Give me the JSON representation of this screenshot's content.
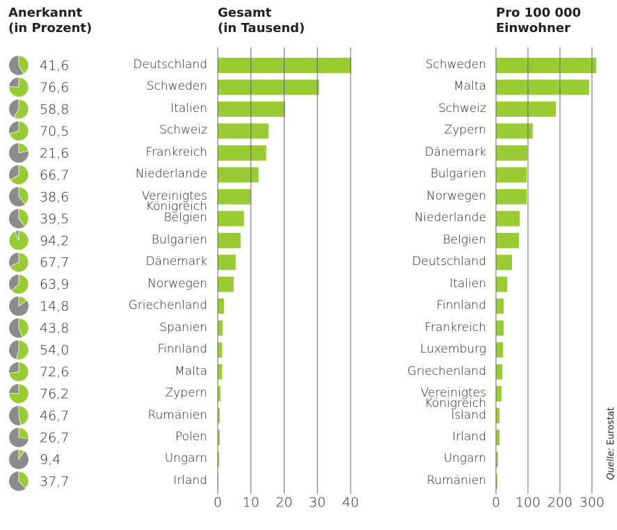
{
  "chart_data": [
    {
      "type": "pie",
      "title_lines": [
        "Anerkannt",
        "(in Prozent)"
      ],
      "values": [
        41.6,
        76.6,
        58.8,
        70.5,
        21.6,
        66.7,
        38.6,
        39.5,
        94.2,
        67.7,
        63.9,
        14.8,
        43.8,
        54.0,
        72.6,
        76.2,
        46.7,
        26.7,
        9.4,
        37.7
      ],
      "value_labels": [
        "41,6",
        "76,6",
        "58,8",
        "70,5",
        "21,6",
        "66,7",
        "38,6",
        "39,5",
        "94,2",
        "67,7",
        "63,9",
        "14,8",
        "43,8",
        "54,0",
        "72,6",
        "76,2",
        "46,7",
        "26,7",
        "9,4",
        "37,7"
      ],
      "color": "#99cc33",
      "rest_color": "#8c8c8c"
    },
    {
      "type": "hbar",
      "title_lines": [
        "Gesamt",
        "(in Tausend)"
      ],
      "categories": [
        "Deutschland",
        "Schweden",
        "Italien",
        "Schweiz",
        "Frankreich",
        "Niederlande",
        "Vereinigtes Königreich",
        "Belgien",
        "Bulgarien",
        "Dänemark",
        "Norwegen",
        "Griechenland",
        "Spanien",
        "Finnland",
        "Malta",
        "Zypern",
        "Rumänien",
        "Polen",
        "Ungarn",
        "Irland"
      ],
      "values": [
        40.2,
        30.5,
        20.3,
        15.3,
        14.6,
        12.3,
        10.0,
        7.9,
        6.9,
        5.4,
        4.8,
        1.9,
        1.5,
        1.3,
        1.3,
        0.8,
        0.6,
        0.6,
        0.4,
        0.2
      ],
      "color": "#99cc33",
      "xlim": [
        0,
        40
      ],
      "xticks": [
        0,
        10,
        20,
        30,
        40
      ],
      "grid": true
    },
    {
      "type": "hbar",
      "title_lines": [
        "Pro 100 000",
        "Einwohner"
      ],
      "categories": [
        "Schweden",
        "Malta",
        "Schweiz",
        "Zypern",
        "Dänemark",
        "Bulgarien",
        "Norwegen",
        "Niederlande",
        "Belgien",
        "Deutschland",
        "Italien",
        "Finnland",
        "Frankreich",
        "Luxemburg",
        "Griechenland",
        "Vereinigtes Königreich",
        "Island",
        "Irland",
        "Ungarn",
        "Rumänien"
      ],
      "values": [
        313,
        291,
        187,
        115,
        98,
        96,
        96,
        74,
        72,
        50,
        35,
        24,
        24,
        22,
        20,
        17,
        11,
        11,
        6,
        4
      ],
      "color": "#99cc33",
      "xlim": [
        0,
        300
      ],
      "xticks": [
        0,
        100,
        200,
        300
      ],
      "grid": true,
      "source_label": "Quelle:",
      "source": "Eurostat"
    }
  ]
}
